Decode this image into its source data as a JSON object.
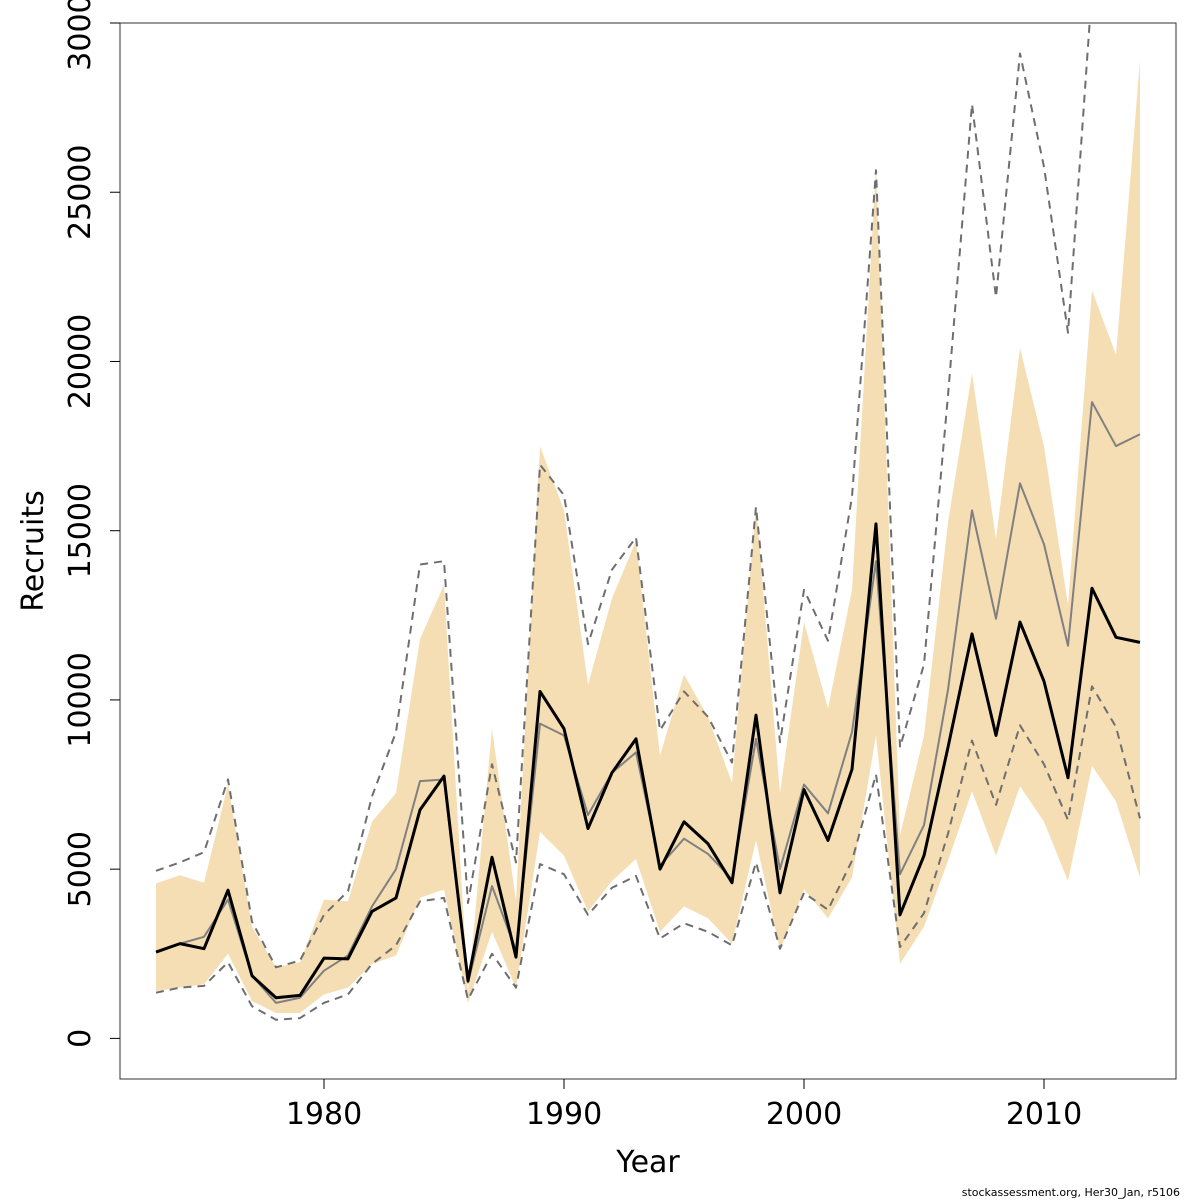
{
  "chart_data": {
    "type": "line",
    "title": "",
    "xlabel": "Year",
    "ylabel": "Recruits",
    "xlim": [
      1971.5,
      2015.5
    ],
    "ylim": [
      -1200,
      30000
    ],
    "x_ticks": [
      "1980",
      "1990",
      "2000",
      "2010"
    ],
    "y_ticks": [
      "0",
      "5000",
      "10000",
      "15000",
      "20000",
      "25000",
      "30000"
    ],
    "grid": false,
    "legend": "none",
    "colors": {
      "band": "#f5deb3",
      "main": "#000000",
      "alt": "#808080",
      "alt_ci": "#6e6e6e"
    },
    "x": [
      1973,
      1974,
      1975,
      1976,
      1977,
      1978,
      1979,
      1980,
      1981,
      1982,
      1983,
      1984,
      1985,
      1986,
      1987,
      1988,
      1989,
      1990,
      1991,
      1992,
      1993,
      1994,
      1995,
      1996,
      1997,
      1998,
      1999,
      2000,
      2001,
      2002,
      2003,
      2004,
      2005,
      2006,
      2007,
      2008,
      2009,
      2010,
      2011,
      2012,
      2013,
      2014
    ],
    "series": [
      {
        "role": "band_upper",
        "values": [
          4580,
          4820,
          4600,
          7500,
          3300,
          2100,
          2250,
          4100,
          4050,
          6400,
          7250,
          11800,
          13400,
          1350,
          9150,
          4050,
          17500,
          15600,
          10450,
          13000,
          14700,
          8350,
          10750,
          9500,
          7550,
          15750,
          7250,
          12300,
          9750,
          13250,
          25700,
          6000,
          8950,
          15250,
          19650,
          14750,
          20400,
          17500,
          12800,
          22100,
          20200,
          28900
        ]
      },
      {
        "role": "band_lower",
        "values": [
          1400,
          1500,
          1600,
          2500,
          1100,
          750,
          750,
          1300,
          1500,
          2200,
          2450,
          4150,
          4400,
          1050,
          3150,
          1500,
          6100,
          5400,
          3750,
          4650,
          5300,
          3150,
          3900,
          3550,
          2800,
          5850,
          2600,
          4400,
          3550,
          4750,
          8950,
          2200,
          3300,
          5250,
          7300,
          5400,
          7450,
          6400,
          4650,
          8050,
          7000,
          4750
        ]
      },
      {
        "role": "main",
        "values": [
          2550,
          2800,
          2650,
          4380,
          1850,
          1200,
          1270,
          2370,
          2350,
          3750,
          4150,
          6750,
          7750,
          1700,
          5350,
          2400,
          10250,
          9150,
          6200,
          7850,
          8850,
          5000,
          6400,
          5750,
          4600,
          9550,
          4300,
          7350,
          5850,
          7950,
          15200,
          3650,
          5400,
          8600,
          11950,
          8950,
          12300,
          10550,
          7700,
          13300,
          11850,
          11700
        ]
      },
      {
        "role": "alt",
        "values": [
          2550,
          2800,
          3000,
          4100,
          1850,
          1050,
          1200,
          2000,
          2450,
          3900,
          5000,
          7600,
          7650,
          1650,
          4500,
          2600,
          9300,
          8950,
          6600,
          7850,
          8450,
          5100,
          5900,
          5450,
          4700,
          8850,
          5000,
          7500,
          6650,
          9050,
          14100,
          4850,
          6300,
          10300,
          15600,
          12400,
          16400,
          14600,
          11600,
          18800,
          17500,
          17850
        ]
      },
      {
        "role": "alt_upper",
        "values": [
          4950,
          5200,
          5500,
          7650,
          3450,
          2100,
          2300,
          3650,
          4350,
          7150,
          9050,
          14000,
          14100,
          4000,
          8100,
          5200,
          16950,
          16050,
          11650,
          13850,
          14800,
          9100,
          10250,
          9500,
          8150,
          15700,
          8750,
          13250,
          11750,
          16000,
          25650,
          8600,
          11050,
          19000,
          27600,
          21900,
          29100,
          25750,
          20850,
          31000,
          31000,
          31000
        ]
      },
      {
        "role": "alt_lower",
        "values": [
          1350,
          1500,
          1550,
          2250,
          950,
          550,
          600,
          1050,
          1300,
          2200,
          2750,
          4050,
          4150,
          1150,
          2500,
          1500,
          5150,
          4850,
          3650,
          4450,
          4800,
          2950,
          3400,
          3150,
          2750,
          5200,
          2650,
          4300,
          3800,
          5250,
          7800,
          2700,
          3700,
          6050,
          8800,
          6900,
          9250,
          8100,
          6450,
          10400,
          9200,
          6500
        ]
      }
    ]
  },
  "footer": {
    "credit": "stockassessment.org, Her30_Jan, r5106"
  }
}
